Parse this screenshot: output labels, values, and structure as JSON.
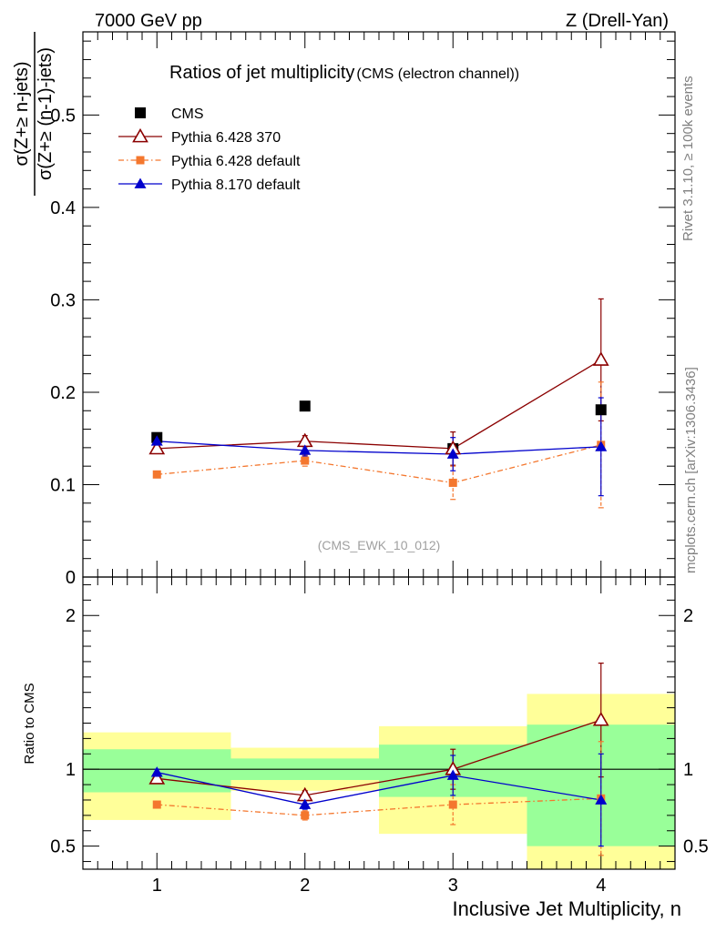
{
  "header": {
    "left": "7000 GeV pp",
    "right": "Z (Drell-Yan)"
  },
  "side_labels": {
    "rivet": "Rivet 3.1.10, ≥ 100k events",
    "mcplots": "mcplots.cern.ch [arXiv:1306.3436]"
  },
  "colors": {
    "cms": "#000000",
    "pythia6_370": "#8b0000",
    "pythia6_default": "#f4772e",
    "pythia8_default": "#0000cc",
    "band_outer": "#ffff99",
    "band_inner": "#99ff99"
  },
  "chart_data": [
    {
      "type": "scatter",
      "title": "Ratios of jet multiplicity",
      "subtitle": "(CMS (electron channel))",
      "watermark": "(CMS_EWK_10_012)",
      "ylabel_numerator": "σ(Z+≥ n-jets)",
      "ylabel_denominator": "σ(Z+≥ (n-1)-jets)",
      "xlim": [
        0.5,
        4.5
      ],
      "ylim": [
        0,
        0.59
      ],
      "yticks": [
        0.1,
        0.2,
        0.3,
        0.4,
        0.5
      ],
      "ytick_labels": [
        "0.1",
        "0.2",
        "0.3",
        "0.4",
        "0.5"
      ],
      "ytick_zero_label": "0",
      "legend_position": "top-left",
      "series": [
        {
          "name": "CMS",
          "key": "cms",
          "marker": "filled-square",
          "line": "none",
          "x": [
            1,
            2,
            3,
            4
          ],
          "y": [
            0.151,
            0.185,
            0.139,
            0.181
          ],
          "err": [
            0.0,
            0.0,
            0.0,
            0.0
          ]
        },
        {
          "name": "Pythia 6.428 370",
          "key": "pythia6_370",
          "marker": "open-triangle",
          "line": "solid",
          "x": [
            1,
            2,
            3,
            4
          ],
          "y": [
            0.139,
            0.147,
            0.139,
            0.235
          ],
          "err": [
            0.004,
            0.006,
            0.018,
            0.066
          ]
        },
        {
          "name": "Pythia 6.428 default",
          "key": "pythia6_default",
          "marker": "filled-square-small",
          "line": "dashdot",
          "x": [
            1,
            2,
            3,
            4
          ],
          "y": [
            0.111,
            0.126,
            0.102,
            0.143
          ],
          "err": [
            0.003,
            0.006,
            0.018,
            0.068
          ]
        },
        {
          "name": "Pythia 8.170 default",
          "key": "pythia8_default",
          "marker": "filled-triangle",
          "line": "solid",
          "x": [
            1,
            2,
            3,
            4
          ],
          "y": [
            0.147,
            0.137,
            0.133,
            0.141
          ],
          "err": [
            0.003,
            0.006,
            0.018,
            0.053
          ]
        }
      ]
    },
    {
      "type": "scatter",
      "ylabel": "Ratio to CMS",
      "xlabel": "Inclusive Jet Multiplicity, n",
      "xlim": [
        0.5,
        4.5
      ],
      "ylim": [
        0.35,
        2.25
      ],
      "xticks": [
        1,
        2,
        3,
        4
      ],
      "xtick_labels": [
        "1",
        "2",
        "3",
        "4"
      ],
      "yticks": [
        0.5,
        1,
        2
      ],
      "ytick_labels": [
        "0.5",
        "1",
        "2"
      ],
      "reference_line": 1,
      "bands": [
        {
          "x0": 0.5,
          "x1": 1.5,
          "inner": [
            0.85,
            1.13
          ],
          "outer": [
            0.67,
            1.24
          ]
        },
        {
          "x0": 1.5,
          "x1": 2.5,
          "inner": [
            0.93,
            1.07
          ],
          "outer": [
            0.86,
            1.14
          ]
        },
        {
          "x0": 2.5,
          "x1": 3.5,
          "inner": [
            0.82,
            1.16
          ],
          "outer": [
            0.58,
            1.28
          ]
        },
        {
          "x0": 3.5,
          "x1": 4.5,
          "inner": [
            0.5,
            1.29
          ],
          "outer": [
            0.35,
            1.49
          ]
        }
      ],
      "series": [
        {
          "name": "Pythia 6.428 370",
          "key": "pythia6_370",
          "marker": "open-triangle",
          "line": "solid",
          "x": [
            1,
            2,
            3,
            4
          ],
          "y": [
            0.94,
            0.83,
            1.0,
            1.32
          ],
          "err": [
            0.02,
            0.03,
            0.13,
            0.37
          ]
        },
        {
          "name": "Pythia 6.428 default",
          "key": "pythia6_default",
          "marker": "filled-square-small",
          "line": "dashdot",
          "x": [
            1,
            2,
            3,
            4
          ],
          "y": [
            0.77,
            0.7,
            0.77,
            0.81
          ],
          "err": [
            0.02,
            0.03,
            0.13,
            0.37
          ]
        },
        {
          "name": "Pythia 8.170 default",
          "key": "pythia8_default",
          "marker": "filled-triangle",
          "line": "solid",
          "x": [
            1,
            2,
            3,
            4
          ],
          "y": [
            0.98,
            0.77,
            0.96,
            0.8
          ],
          "err": [
            0.02,
            0.03,
            0.13,
            0.3
          ]
        }
      ]
    }
  ]
}
